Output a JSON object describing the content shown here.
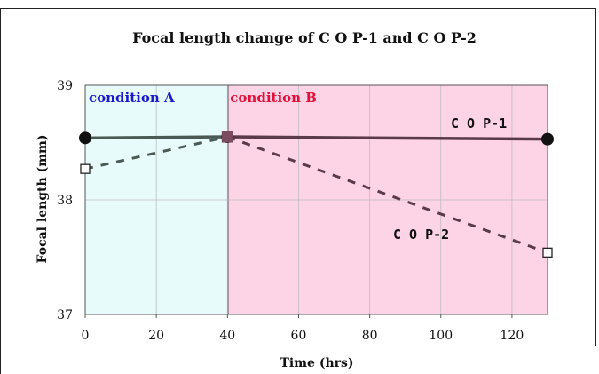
{
  "chart_data": {
    "type": "line",
    "title": "Focal length change of C O P-1 and C O P-2",
    "xlabel": "Time (hrs)",
    "ylabel": "Focal length (mm)",
    "xlim": [
      0,
      130
    ],
    "ylim": [
      37,
      39
    ],
    "x_ticks": [
      "0",
      "20",
      "40",
      "60",
      "80",
      "100",
      "120"
    ],
    "y_ticks": [
      "37",
      "38",
      "39"
    ],
    "x_tick_values": [
      0,
      20,
      40,
      60,
      80,
      100,
      120
    ],
    "y_tick_values": [
      37,
      38,
      39
    ],
    "grid": true,
    "regions": [
      {
        "label": "condition A",
        "x_start": 0,
        "x_end": 40,
        "color": "#e8fbfb",
        "label_color": "#1a1acc"
      },
      {
        "label": "condition B",
        "x_start": 40,
        "x_end": 130,
        "color": "#fdd3e6",
        "label_color": "#e0103a"
      }
    ],
    "series": [
      {
        "name": "C O P-1",
        "style": "solid",
        "marker": "filled-circle",
        "color_a": "#4a5a55",
        "color_b": "#5a3a48",
        "points": [
          {
            "x": 0,
            "y": 38.54
          },
          {
            "x": 40,
            "y": 38.55
          },
          {
            "x": 130,
            "y": 38.53
          }
        ]
      },
      {
        "name": "C O P-2",
        "style": "dashed",
        "marker": "open-square",
        "color_a": "#4a5a55",
        "color_b": "#5a3a48",
        "points": [
          {
            "x": 0,
            "y": 38.27
          },
          {
            "x": 40,
            "y": 38.55
          },
          {
            "x": 130,
            "y": 37.54
          }
        ]
      }
    ]
  }
}
